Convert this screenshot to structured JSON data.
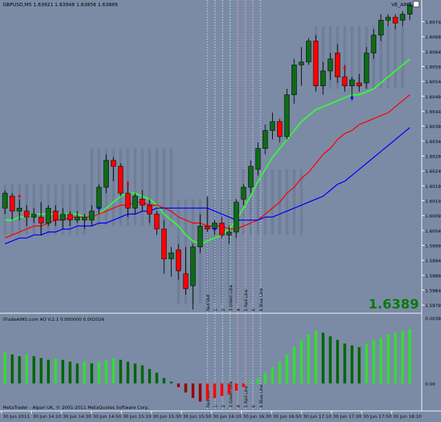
{
  "window": {
    "title": "GBPUSD,M5  1.63921 1.63948 1.63856 1.63889",
    "indicator_label": "VE_AIMS",
    "big_price": "1.6389",
    "watermark": "MetaTrader - Alpari UK, © 2001-2011 MetaQuotes Software Corp."
  },
  "indicator": {
    "title": "iTradeAIMS.com AO V.2.1 0.000000 0.002026",
    "top_label": "0.00395",
    "zero_label": "0.00"
  },
  "colors": {
    "background": "#7b8ba6",
    "bull_candle": "#0f6a18",
    "bear_candle": "#ff0000",
    "green_line": "#33ff33",
    "red_line": "#ff0000",
    "blue_line": "#0000ff",
    "ao_up": "#33dd33",
    "ao_down_pos": "#006600",
    "ao_up_neg": "#ff0000",
    "ao_down_neg": "#990000"
  },
  "chart_data": {
    "type": "candlestick",
    "symbol": "GBPUSD",
    "timeframe": "M5",
    "price_axis": [
      "1.60745",
      "1.60695",
      "1.60645",
      "1.60595",
      "1.60545",
      "1.60495",
      "1.60445",
      "1.60395",
      "1.60345",
      "1.60295",
      "1.60245",
      "1.60195",
      "1.60145",
      "1.60095",
      "1.60045",
      "1.59995",
      "1.59945",
      "1.59895",
      "1.59845",
      "1.59795"
    ],
    "y_range": [
      1.5977,
      1.6079
    ],
    "time_axis": [
      "30 Jun 2011",
      "30 Jun 14:10",
      "30 Jun 14:30",
      "30 Jun 14:50",
      "30 Jun 15:10",
      "30 Jun 15:30",
      "30 Jun 15:50",
      "30 Jun 16:10",
      "30 Jun 16:30",
      "30 Jun 16:50",
      "30 Jun 17:10",
      "30 Jun 17:30",
      "30 Jun 17:50",
      "30 Jun 18:10"
    ],
    "vertical_lines": [
      {
        "label": "Red Out",
        "color": "#c8c8ff"
      },
      {
        "label": "1",
        "color": "#c8c8ff"
      },
      {
        "label": "2",
        "color": "#c8c8ff"
      },
      {
        "label": "3 Green Line",
        "color": "#aaffaa"
      },
      {
        "label": "4",
        "color": "#ffaaaa"
      },
      {
        "label": "5 Red Line",
        "color": "#ffaaaa"
      },
      {
        "label": "6",
        "color": "#c8c8ff"
      },
      {
        "label": "6 Blue Line",
        "color": "#c8c8ff"
      }
    ],
    "candles": [
      {
        "o": 1.6012,
        "h": 1.6018,
        "l": 1.601,
        "c": 1.6017
      },
      {
        "o": 1.6016,
        "h": 1.6017,
        "l": 1.6008,
        "c": 1.6011
      },
      {
        "o": 1.6011,
        "h": 1.6015,
        "l": 1.6008,
        "c": 1.6012
      },
      {
        "o": 1.6011,
        "h": 1.6013,
        "l": 1.6006,
        "c": 1.6009
      },
      {
        "o": 1.6009,
        "h": 1.6012,
        "l": 1.6007,
        "c": 1.601
      },
      {
        "o": 1.6009,
        "h": 1.6014,
        "l": 1.6003,
        "c": 1.6007
      },
      {
        "o": 1.6007,
        "h": 1.6013,
        "l": 1.6006,
        "c": 1.6012
      },
      {
        "o": 1.6011,
        "h": 1.6013,
        "l": 1.6006,
        "c": 1.6008
      },
      {
        "o": 1.6008,
        "h": 1.6012,
        "l": 1.6005,
        "c": 1.601
      },
      {
        "o": 1.601,
        "h": 1.6011,
        "l": 1.6006,
        "c": 1.6008
      },
      {
        "o": 1.6008,
        "h": 1.6011,
        "l": 1.6007,
        "c": 1.6009
      },
      {
        "o": 1.6008,
        "h": 1.601,
        "l": 1.6005,
        "c": 1.6009
      },
      {
        "o": 1.6008,
        "h": 1.6013,
        "l": 1.6006,
        "c": 1.6011
      },
      {
        "o": 1.6012,
        "h": 1.602,
        "l": 1.601,
        "c": 1.6019
      },
      {
        "o": 1.6019,
        "h": 1.603,
        "l": 1.6017,
        "c": 1.6028
      },
      {
        "o": 1.6028,
        "h": 1.6029,
        "l": 1.6021,
        "c": 1.6026
      },
      {
        "o": 1.6026,
        "h": 1.6027,
        "l": 1.6016,
        "c": 1.6017
      },
      {
        "o": 1.6017,
        "h": 1.6021,
        "l": 1.6009,
        "c": 1.6012
      },
      {
        "o": 1.6012,
        "h": 1.6017,
        "l": 1.601,
        "c": 1.6016
      },
      {
        "o": 1.6015,
        "h": 1.6018,
        "l": 1.6011,
        "c": 1.6013
      },
      {
        "o": 1.6013,
        "h": 1.6015,
        "l": 1.6007,
        "c": 1.601
      },
      {
        "o": 1.601,
        "h": 1.6011,
        "l": 1.6003,
        "c": 1.6005
      },
      {
        "o": 1.6005,
        "h": 1.6008,
        "l": 1.599,
        "c": 1.5995
      },
      {
        "o": 1.5995,
        "h": 1.5999,
        "l": 1.5989,
        "c": 1.5997
      },
      {
        "o": 1.5998,
        "h": 1.6,
        "l": 1.5988,
        "c": 1.5991
      },
      {
        "o": 1.599,
        "h": 1.5999,
        "l": 1.5983,
        "c": 1.5985
      },
      {
        "o": 1.5986,
        "h": 1.6,
        "l": 1.5978,
        "c": 1.5999
      },
      {
        "o": 1.5999,
        "h": 1.601,
        "l": 1.5997,
        "c": 1.6006
      },
      {
        "o": 1.6006,
        "h": 1.6016,
        "l": 1.6004,
        "c": 1.6005
      },
      {
        "o": 1.6005,
        "h": 1.6008,
        "l": 1.6003,
        "c": 1.6007
      },
      {
        "o": 1.6007,
        "h": 1.6009,
        "l": 1.6002,
        "c": 1.6003
      },
      {
        "o": 1.6003,
        "h": 1.6006,
        "l": 1.6,
        "c": 1.6004
      },
      {
        "o": 1.6004,
        "h": 1.6015,
        "l": 1.6002,
        "c": 1.6014
      },
      {
        "o": 1.6015,
        "h": 1.602,
        "l": 1.6013,
        "c": 1.6019
      },
      {
        "o": 1.6019,
        "h": 1.6028,
        "l": 1.6017,
        "c": 1.6026
      },
      {
        "o": 1.6025,
        "h": 1.6034,
        "l": 1.6023,
        "c": 1.6032
      },
      {
        "o": 1.6032,
        "h": 1.604,
        "l": 1.603,
        "c": 1.6038
      },
      {
        "o": 1.6038,
        "h": 1.6044,
        "l": 1.6035,
        "c": 1.6041
      },
      {
        "o": 1.6041,
        "h": 1.6042,
        "l": 1.6034,
        "c": 1.6036
      },
      {
        "o": 1.6036,
        "h": 1.6052,
        "l": 1.6035,
        "c": 1.605
      },
      {
        "o": 1.605,
        "h": 1.6062,
        "l": 1.6047,
        "c": 1.606
      },
      {
        "o": 1.606,
        "h": 1.6066,
        "l": 1.6053,
        "c": 1.6061
      },
      {
        "o": 1.6061,
        "h": 1.6069,
        "l": 1.606,
        "c": 1.6068
      },
      {
        "o": 1.6068,
        "h": 1.607,
        "l": 1.6051,
        "c": 1.6053
      },
      {
        "o": 1.6053,
        "h": 1.6061,
        "l": 1.605,
        "c": 1.6058
      },
      {
        "o": 1.6058,
        "h": 1.6064,
        "l": 1.6055,
        "c": 1.6062
      },
      {
        "o": 1.6064,
        "h": 1.6067,
        "l": 1.6054,
        "c": 1.6056
      },
      {
        "o": 1.6056,
        "h": 1.606,
        "l": 1.6051,
        "c": 1.6053
      },
      {
        "o": 1.6053,
        "h": 1.6056,
        "l": 1.6048,
        "c": 1.6055
      },
      {
        "o": 1.6054,
        "h": 1.6057,
        "l": 1.6051,
        "c": 1.6053
      },
      {
        "o": 1.6054,
        "h": 1.6066,
        "l": 1.6052,
        "c": 1.6064
      },
      {
        "o": 1.6064,
        "h": 1.6072,
        "l": 1.6062,
        "c": 1.607
      },
      {
        "o": 1.607,
        "h": 1.6077,
        "l": 1.6068,
        "c": 1.6075
      },
      {
        "o": 1.6075,
        "h": 1.6077,
        "l": 1.6073,
        "c": 1.6076
      },
      {
        "o": 1.6076,
        "h": 1.6077,
        "l": 1.6072,
        "c": 1.6074
      },
      {
        "o": 1.6075,
        "h": 1.6078,
        "l": 1.6073,
        "c": 1.6077
      },
      {
        "o": 1.6077,
        "h": 1.6081,
        "l": 1.6075,
        "c": 1.608
      }
    ],
    "series": [
      {
        "color": "#33ff33",
        "values": [
          1.6008,
          1.6008,
          1.6009,
          1.6009,
          1.601,
          1.601,
          1.601,
          1.601,
          1.601,
          1.601,
          1.601,
          1.6009,
          1.6009,
          1.601,
          1.6012,
          1.6014,
          1.6016,
          1.6017,
          1.6017,
          1.6016,
          1.6015,
          1.6013,
          1.601,
          1.6008,
          1.6006,
          1.6003,
          1.6001,
          1.6,
          1.6001,
          1.6002,
          1.6003,
          1.6005,
          1.6008,
          1.6012,
          1.6016,
          1.6021,
          1.6025,
          1.6029,
          1.6032,
          1.6035,
          1.6038,
          1.6041,
          1.6043,
          1.6045,
          1.6046,
          1.6047,
          1.6048,
          1.6049,
          1.605,
          1.605,
          1.6051,
          1.6052,
          1.6054,
          1.6056,
          1.6058,
          1.606,
          1.6062
        ]
      },
      {
        "color": "#ff0000",
        "values": [
          1.6002,
          1.6003,
          1.6004,
          1.6005,
          1.6006,
          1.6006,
          1.6007,
          1.6008,
          1.6008,
          1.6009,
          1.6009,
          1.6009,
          1.6009,
          1.601,
          1.6011,
          1.6012,
          1.6013,
          1.6013,
          1.6014,
          1.6014,
          1.6013,
          1.6013,
          1.6012,
          1.6011,
          1.6009,
          1.6008,
          1.6007,
          1.6007,
          1.6006,
          1.6006,
          1.6006,
          1.6005,
          1.6005,
          1.6006,
          1.6007,
          1.6008,
          1.601,
          1.6012,
          1.6014,
          1.6017,
          1.6019,
          1.6022,
          1.6024,
          1.6027,
          1.603,
          1.6032,
          1.6035,
          1.6037,
          1.6038,
          1.604,
          1.6041,
          1.6042,
          1.6043,
          1.6044,
          1.6046,
          1.6048,
          1.605
        ]
      },
      {
        "color": "#0000ff",
        "values": [
          1.6,
          1.6001,
          1.6002,
          1.6002,
          1.6003,
          1.6003,
          1.6004,
          1.6004,
          1.6005,
          1.6005,
          1.6006,
          1.6006,
          1.6006,
          1.6007,
          1.6007,
          1.6008,
          1.6009,
          1.601,
          1.601,
          1.6011,
          1.6011,
          1.6012,
          1.6012,
          1.6012,
          1.6012,
          1.6012,
          1.6012,
          1.6012,
          1.6012,
          1.6011,
          1.601,
          1.6009,
          1.6008,
          1.6008,
          1.6008,
          1.6008,
          1.6009,
          1.6009,
          1.601,
          1.6011,
          1.6012,
          1.6013,
          1.6014,
          1.6015,
          1.6016,
          1.6018,
          1.602,
          1.6021,
          1.6023,
          1.6025,
          1.6027,
          1.6029,
          1.6031,
          1.6033,
          1.6035,
          1.6037,
          1.6039
        ]
      }
    ],
    "ao_values": [
      0.0017,
      0.0016,
      0.0015,
      0.0016,
      0.0015,
      0.0014,
      0.0013,
      0.0014,
      0.0013,
      0.0012,
      0.0011,
      0.0012,
      0.0011,
      0.0012,
      0.0013,
      0.0014,
      0.0013,
      0.0012,
      0.0011,
      0.001,
      0.0008,
      0.0006,
      0.0003,
      0.0001,
      -0.0002,
      -0.0005,
      -0.0008,
      -0.001,
      -0.0009,
      -0.0008,
      -0.0007,
      -0.0006,
      -0.0004,
      -0.0002,
      0.0001,
      0.0003,
      0.0006,
      0.0009,
      0.0012,
      0.0016,
      0.002,
      0.0024,
      0.0027,
      0.0029,
      0.0028,
      0.0026,
      0.0024,
      0.0022,
      0.0021,
      0.002,
      0.0022,
      0.0024,
      0.0025,
      0.0027,
      0.0028,
      0.0029,
      0.003
    ]
  }
}
